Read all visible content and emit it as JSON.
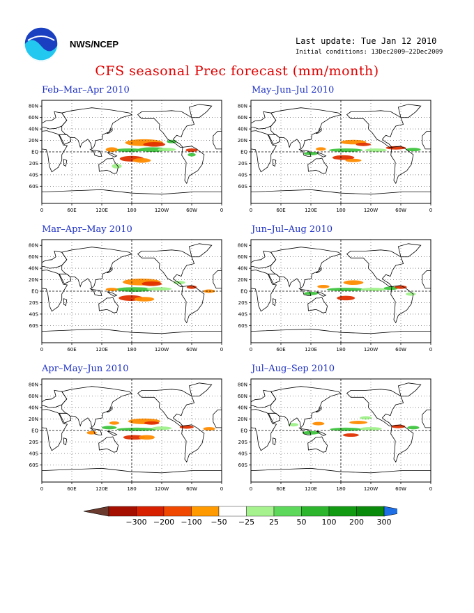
{
  "header": {
    "org": "NWS/NCEP",
    "last_update": "Last update: Tue Jan 12 2010",
    "initial_conditions": "Initial conditions: 13Dec2009–22Dec2009",
    "title": "CFS seasonal Prec forecast (mm/month)"
  },
  "panels": [
    {
      "title": "Feb–Mar–Apr 2010"
    },
    {
      "title": "May–Jun–Jul 2010"
    },
    {
      "title": "Mar–Apr–May 2010"
    },
    {
      "title": "Jun–Jul–Aug 2010"
    },
    {
      "title": "Apr–May–Jun 2010"
    },
    {
      "title": "Jul–Aug–Sep 2010"
    }
  ],
  "map_axes": {
    "lat_labels": [
      "80N",
      "60N",
      "40N",
      "20N",
      "EQ",
      "20S",
      "40S",
      "60S"
    ],
    "lon_labels": [
      "0",
      "60E",
      "120E",
      "180",
      "120W",
      "60W",
      "0"
    ]
  },
  "colorbar": {
    "labels": [
      "−300",
      "−200",
      "−100",
      "−50",
      "−25",
      "25",
      "50",
      "100",
      "200",
      "300"
    ],
    "colors": [
      "#6b3a2e",
      "#a50f00",
      "#d62000",
      "#f04800",
      "#ff9a00",
      "#ffffff",
      "#a6f28f",
      "#5ed85a",
      "#2db52d",
      "#129b12",
      "#0a8a0a",
      "#1e6fe6"
    ]
  },
  "anomaly_colors": {
    "dry_mid": "#ff8c00",
    "dry_strong": "#e03000",
    "wet_mid": "#3ec43e",
    "wet_light": "#9ff08a"
  }
}
